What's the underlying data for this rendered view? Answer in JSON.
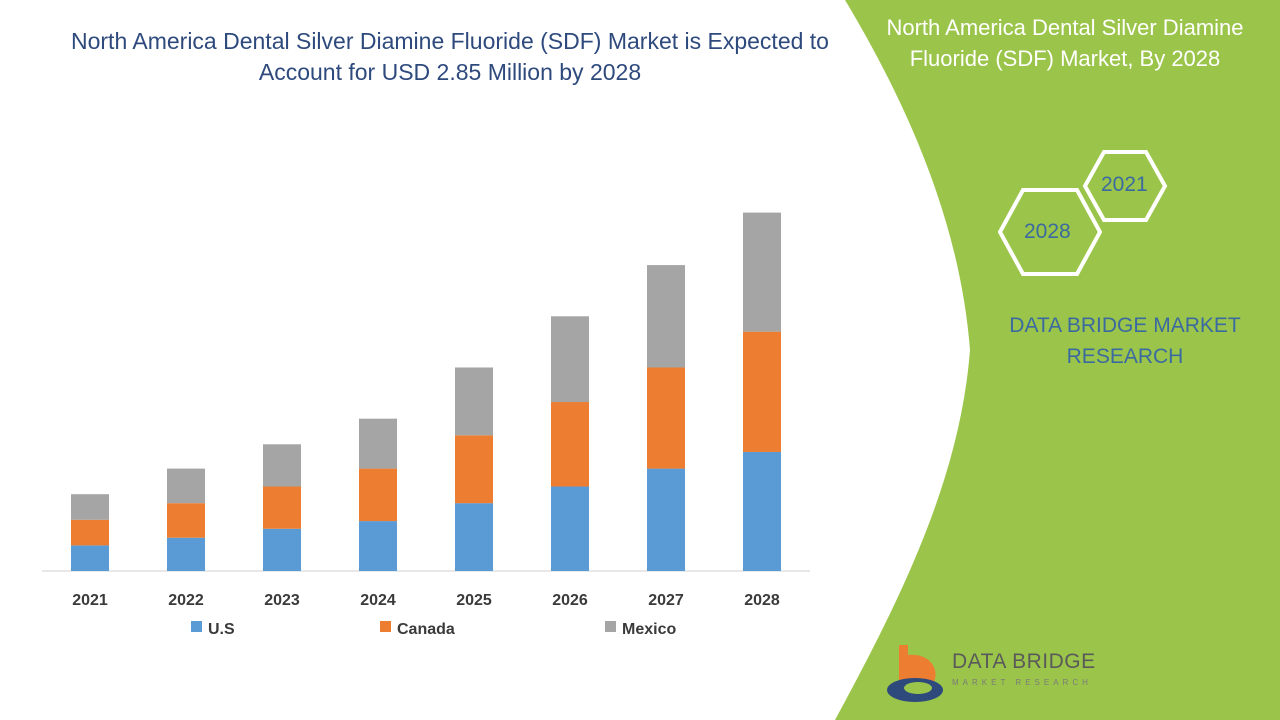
{
  "left_title": "North America Dental Silver Diamine Fluoride (SDF) Market is Expected to Account for USD 2.85 Million by 2028",
  "right_title": "North America Dental Silver Diamine Fluoride (SDF) Market, By 2028",
  "hexagons": {
    "year_a": "2021",
    "year_b": "2028"
  },
  "brand_text": "DATA BRIDGE MARKET RESEARCH",
  "logo": {
    "name": "DATA BRIDGE",
    "tagline": "MARKET RESEARCH"
  },
  "colors": {
    "us": "#5b9bd5",
    "canada": "#ed7d31",
    "mexico": "#a5a5a5",
    "panel": "#9bc54a"
  },
  "chart_data": {
    "type": "bar",
    "stacked": true,
    "categories": [
      "2021",
      "2022",
      "2023",
      "2024",
      "2025",
      "2026",
      "2027",
      "2028"
    ],
    "series": [
      {
        "name": "U.S",
        "values": [
          1.0,
          1.3,
          1.65,
          1.95,
          2.65,
          3.3,
          4.0,
          4.65
        ]
      },
      {
        "name": "Canada",
        "values": [
          1.0,
          1.35,
          1.65,
          2.05,
          2.65,
          3.3,
          3.95,
          4.7
        ]
      },
      {
        "name": "Mexico",
        "values": [
          1.0,
          1.35,
          1.65,
          1.95,
          2.65,
          3.35,
          4.0,
          4.65
        ]
      }
    ],
    "legend_position": "bottom",
    "grid": false
  }
}
